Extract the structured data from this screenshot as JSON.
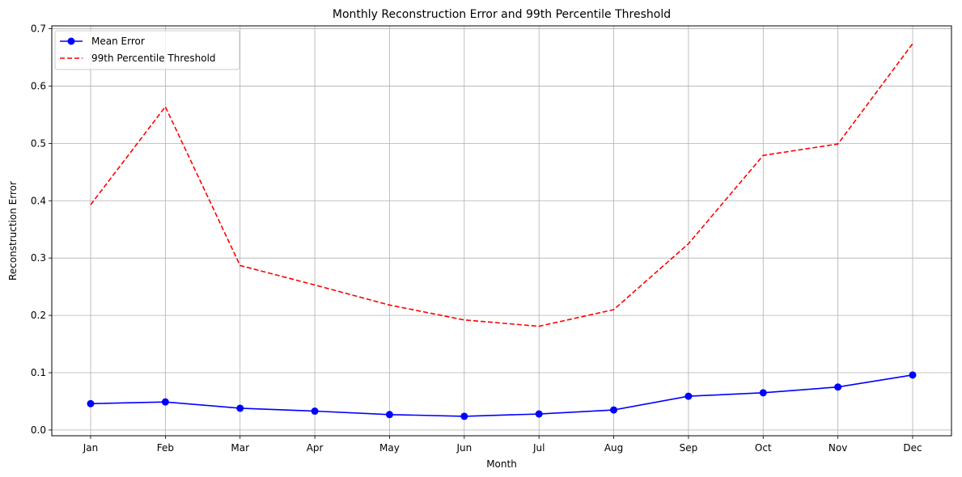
{
  "chart_data": {
    "type": "line",
    "title": "Monthly Reconstruction Error and 99th Percentile Threshold",
    "xlabel": "Month",
    "ylabel": "Reconstruction Error",
    "categories": [
      "Jan",
      "Feb",
      "Mar",
      "Apr",
      "May",
      "Jun",
      "Jul",
      "Aug",
      "Sep",
      "Oct",
      "Nov",
      "Dec"
    ],
    "ylim": [
      -0.01,
      0.705
    ],
    "yticks": [
      "0.0",
      "0.1",
      "0.2",
      "0.3",
      "0.4",
      "0.5",
      "0.6",
      "0.7"
    ],
    "grid": true,
    "legend_position": "top-left",
    "series": [
      {
        "name": "Mean Error",
        "color": "#0000ff",
        "style": "solid",
        "marker": "circle",
        "values": [
          0.046,
          0.049,
          0.038,
          0.033,
          0.027,
          0.024,
          0.028,
          0.035,
          0.059,
          0.065,
          0.075,
          0.096
        ]
      },
      {
        "name": "99th Percentile Threshold",
        "color": "#ff0000",
        "style": "dashed",
        "marker": "none",
        "values": [
          0.393,
          0.564,
          0.287,
          0.253,
          0.218,
          0.192,
          0.181,
          0.21,
          0.325,
          0.479,
          0.499,
          0.674
        ]
      }
    ]
  }
}
